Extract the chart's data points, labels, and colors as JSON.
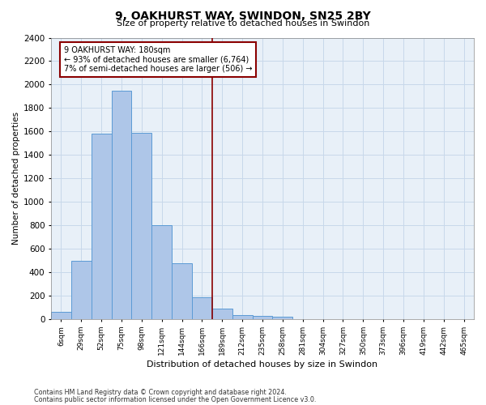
{
  "title": "9, OAKHURST WAY, SWINDON, SN25 2BY",
  "subtitle": "Size of property relative to detached houses in Swindon",
  "xlabel": "Distribution of detached houses by size in Swindon",
  "ylabel": "Number of detached properties",
  "bar_labels": [
    "6sqm",
    "29sqm",
    "52sqm",
    "75sqm",
    "98sqm",
    "121sqm",
    "144sqm",
    "166sqm",
    "189sqm",
    "212sqm",
    "235sqm",
    "258sqm",
    "281sqm",
    "304sqm",
    "327sqm",
    "350sqm",
    "373sqm",
    "396sqm",
    "419sqm",
    "442sqm",
    "465sqm"
  ],
  "bar_values": [
    60,
    500,
    1580,
    1950,
    1590,
    800,
    480,
    190,
    90,
    35,
    28,
    20,
    0,
    0,
    0,
    0,
    0,
    0,
    0,
    0,
    0
  ],
  "bar_color": "#aec6e8",
  "bar_edge_color": "#5b9bd5",
  "vline_x": 7.5,
  "vline_color": "#8b0000",
  "annotation_text": "9 OAKHURST WAY: 180sqm\n← 93% of detached houses are smaller (6,764)\n7% of semi-detached houses are larger (506) →",
  "annotation_box_color": "#8b0000",
  "ylim": [
    0,
    2400
  ],
  "yticks": [
    0,
    200,
    400,
    600,
    800,
    1000,
    1200,
    1400,
    1600,
    1800,
    2000,
    2200,
    2400
  ],
  "grid_color": "#c8d8ea",
  "bg_color": "#e8f0f8",
  "footer1": "Contains HM Land Registry data © Crown copyright and database right 2024.",
  "footer2": "Contains public sector information licensed under the Open Government Licence v3.0."
}
